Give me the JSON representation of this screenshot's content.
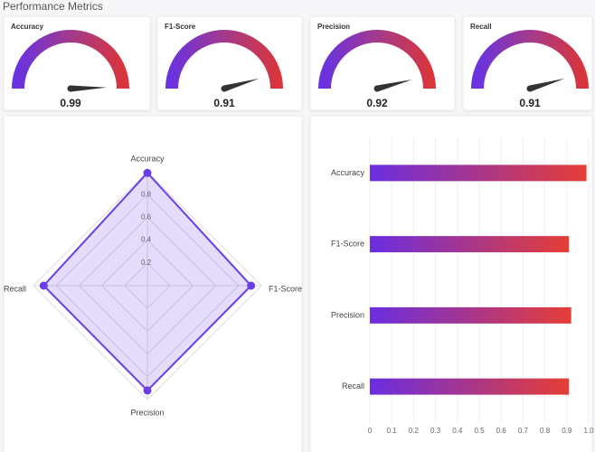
{
  "header": {
    "title": "Performance Metrics"
  },
  "chart_data": [
    {
      "type": "gauge",
      "title": "Accuracy",
      "value": 0.99,
      "lim": [
        0,
        1
      ],
      "colors": [
        "#6a32e0",
        "#a33a8c",
        "#d8353c"
      ]
    },
    {
      "type": "gauge",
      "title": "F1-Score",
      "value": 0.91,
      "lim": [
        0,
        1
      ],
      "colors": [
        "#6a32e0",
        "#a33a8c",
        "#d8353c"
      ]
    },
    {
      "type": "gauge",
      "title": "Precision",
      "value": 0.92,
      "lim": [
        0,
        1
      ],
      "colors": [
        "#6a32e0",
        "#a33a8c",
        "#d8353c"
      ]
    },
    {
      "type": "gauge",
      "title": "Recall",
      "value": 0.91,
      "lim": [
        0,
        1
      ],
      "colors": [
        "#6a32e0",
        "#a33a8c",
        "#d8353c"
      ]
    },
    {
      "type": "radar",
      "categories": [
        "Accuracy",
        "F1-Score",
        "Precision",
        "Recall"
      ],
      "values": [
        0.99,
        0.91,
        0.92,
        0.91
      ],
      "rlim": [
        0,
        1
      ],
      "rticks": [
        0.2,
        0.4,
        0.6,
        0.8
      ],
      "color": "#6a3de8"
    },
    {
      "type": "bar",
      "orientation": "horizontal",
      "categories": [
        "Accuracy",
        "F1-Score",
        "Precision",
        "Recall"
      ],
      "values": [
        0.99,
        0.91,
        0.92,
        0.91
      ],
      "xlim": [
        0,
        1
      ],
      "xticks": [
        0,
        0.1,
        0.2,
        0.3,
        0.4,
        0.5,
        0.6,
        0.7,
        0.8,
        0.9,
        {
          "value": 1,
          "label": "1.0"
        }
      ],
      "colors": [
        "#6a2ee0",
        "#e53e35"
      ],
      "grid": true
    }
  ]
}
